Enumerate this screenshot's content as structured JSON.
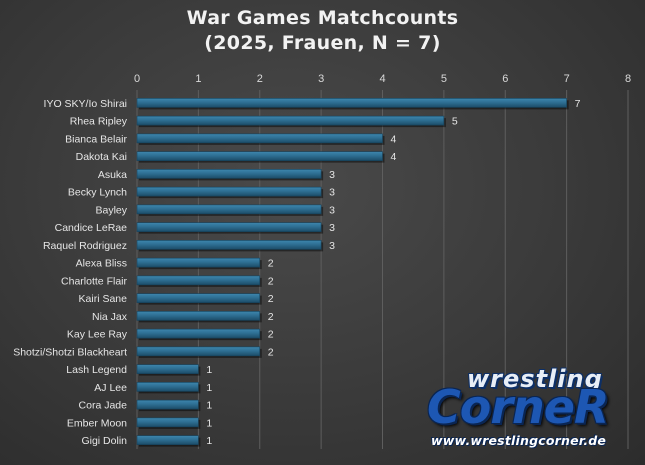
{
  "chart_data": {
    "type": "bar",
    "orientation": "horizontal",
    "title": [
      "War Games Matchcounts",
      "(2025, Frauen, N = 7)"
    ],
    "xlabel": "",
    "ylabel": "",
    "xlim": [
      0,
      8
    ],
    "x_ticks": [
      0,
      1,
      2,
      3,
      4,
      5,
      6,
      7,
      8
    ],
    "x_axis_position": "top",
    "grid": true,
    "legend": "none",
    "categories": [
      "IYO SKY/Io Shirai",
      "Rhea Ripley",
      "Bianca Belair",
      "Dakota Kai",
      "Asuka",
      "Becky Lynch",
      "Bayley",
      "Candice LeRae",
      "Raquel Rodriguez",
      "Alexa Bliss",
      "Charlotte Flair",
      "Kairi Sane",
      "Nia Jax",
      "Kay Lee Ray",
      "Shotzi/Shotzi Blackheart",
      "Lash Legend",
      "AJ Lee",
      "Cora Jade",
      "Ember Moon",
      "Gigi Dolin"
    ],
    "values": [
      7,
      5,
      4,
      4,
      3,
      3,
      3,
      3,
      3,
      2,
      2,
      2,
      2,
      2,
      2,
      1,
      1,
      1,
      1,
      1
    ],
    "data_labels": true,
    "bar_color": "#2e6f93",
    "background_color": "#3b3b3b"
  },
  "watermark": {
    "line1": "wrestling",
    "line2": "CorneR",
    "url": "www.wrestlingcorner.de"
  }
}
